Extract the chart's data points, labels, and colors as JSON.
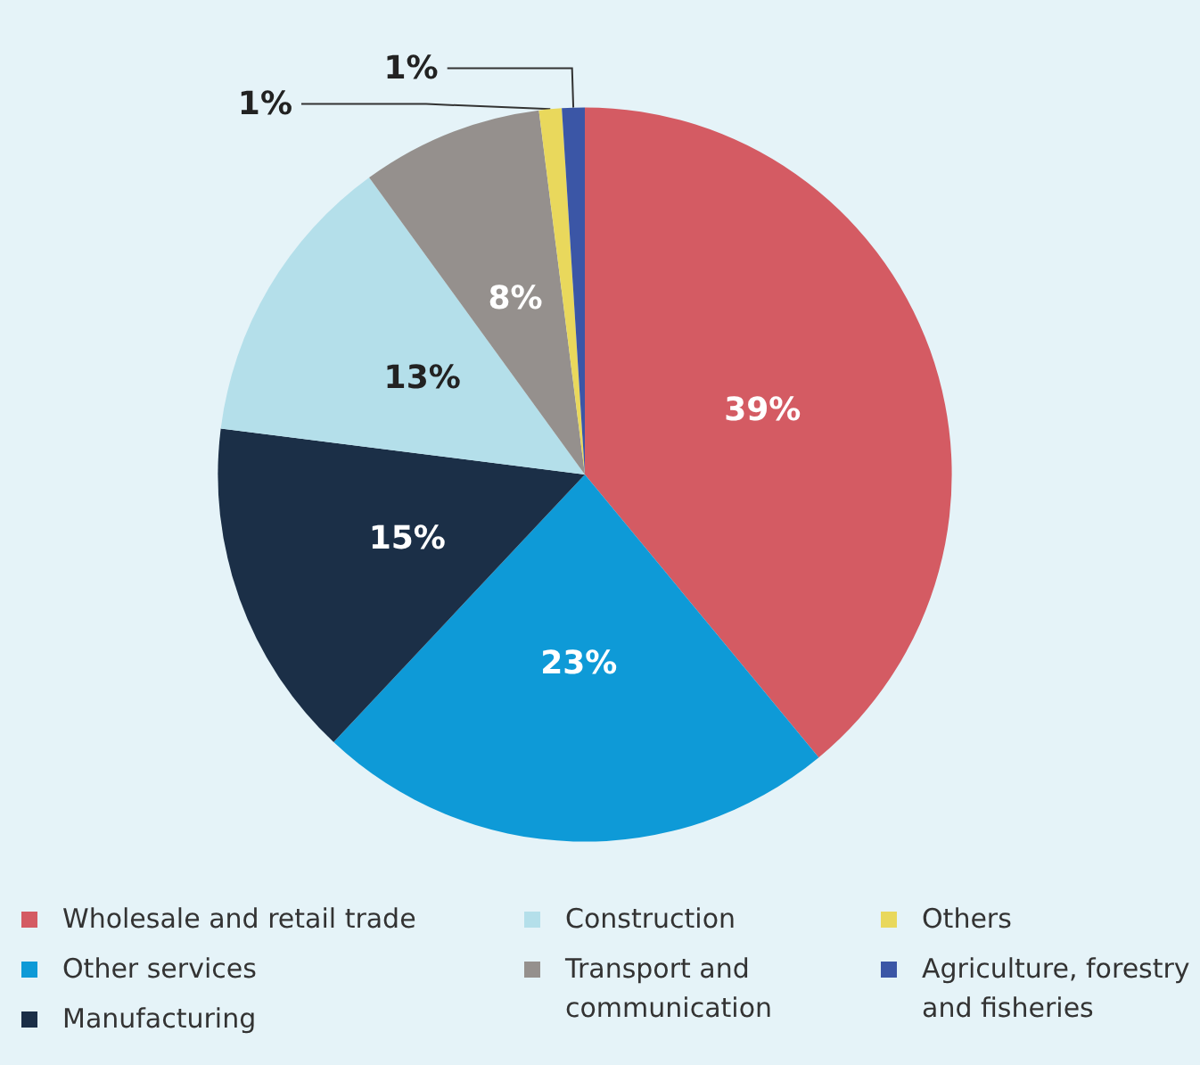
{
  "chart_data": {
    "type": "pie",
    "categories": [
      "Wholesale and retail trade",
      "Other services",
      "Manufacturing",
      "Construction",
      "Transport and communication",
      "Others",
      "Agriculture, forestry and fisheries"
    ],
    "values": [
      39,
      23,
      15,
      13,
      8,
      1,
      1
    ],
    "colors": [
      "#d45b63",
      "#0e9ad7",
      "#1b2f47",
      "#b4dfea",
      "#95908d",
      "#e9d85c",
      "#3b56a6"
    ],
    "value_labels": [
      "39%",
      "23%",
      "15%",
      "13%",
      "8%",
      "1%",
      "1%"
    ],
    "legend": "bottom"
  }
}
